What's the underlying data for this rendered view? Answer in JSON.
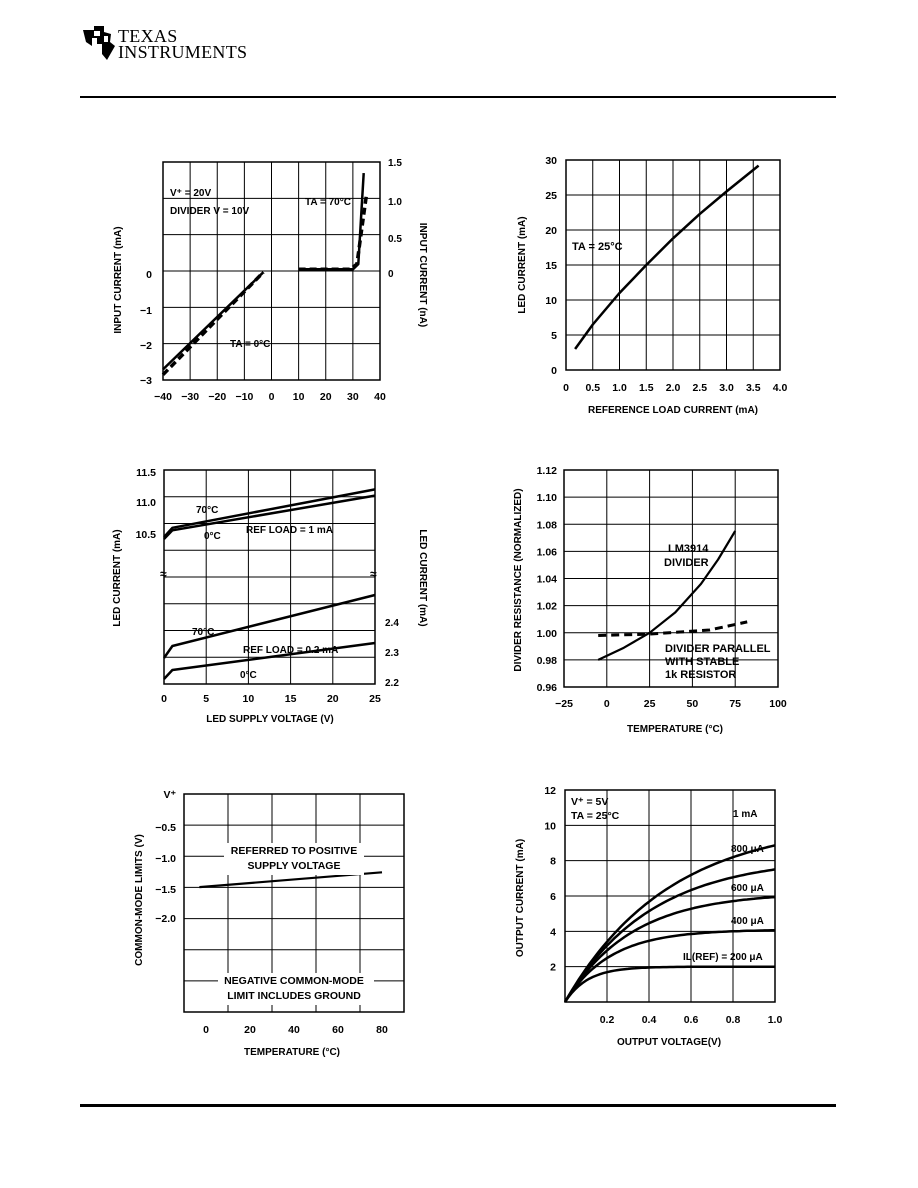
{
  "header": {
    "company_line1": "TEXAS",
    "company_line2": "INSTRUMENTS"
  },
  "chart_data": [
    {
      "id": "input-current",
      "type": "line",
      "xlabel": "",
      "ylabel_left": "INPUT CURRENT (mA)",
      "ylabel_right": "INPUT CURRENT (nA)",
      "xlim": [
        -40,
        40
      ],
      "x_ticks": [
        "−40",
        "−30",
        "−20",
        "−10",
        "0",
        "10",
        "20",
        "30",
        "40"
      ],
      "y_ticks_left": [
        "0",
        "−1",
        "−2",
        "−3"
      ],
      "y_ticks_right": [
        "1.5",
        "1.0",
        "0.5",
        "0"
      ],
      "annotations": [
        "V⁺ = 20V",
        "DIVIDER V = 10V",
        "TA = 70°C",
        "TA = 0°C"
      ],
      "series": [
        {
          "name": "TA = 0°C solid",
          "x": [
            -40,
            -3
          ],
          "y": [
            -2.7,
            0.05
          ]
        },
        {
          "name": "TA = 0°C dashed",
          "x": [
            -40,
            -3
          ],
          "y": [
            -2.85,
            0.05
          ]
        },
        {
          "name": "TA = 70°C (nA scale)",
          "x": [
            10,
            30,
            32,
            34
          ],
          "y": [
            0.05,
            0.05,
            0.1,
            1.3
          ]
        }
      ]
    },
    {
      "id": "led-vs-ref-load",
      "type": "line",
      "xlabel": "REFERENCE LOAD CURRENT (mA)",
      "ylabel": "LED CURRENT (mA)",
      "xlim": [
        0,
        4.0
      ],
      "ylim": [
        0,
        30
      ],
      "x_ticks": [
        "0",
        "0.5",
        "1.0",
        "1.5",
        "2.0",
        "2.5",
        "3.0",
        "3.5",
        "4.0"
      ],
      "y_ticks": [
        "0",
        "5",
        "10",
        "15",
        "20",
        "25",
        "30"
      ],
      "annotations": [
        "TA = 25°C"
      ],
      "series": [
        {
          "name": "TA = 25°C",
          "x": [
            0.17,
            0.5,
            1.0,
            1.5,
            2.0,
            2.5,
            3.0,
            3.6
          ],
          "y": [
            3.0,
            6.5,
            11.0,
            15.0,
            18.8,
            22.3,
            25.5,
            29.2
          ]
        }
      ]
    },
    {
      "id": "led-vs-supply",
      "type": "line",
      "xlabel": "LED SUPPLY VOLTAGE (V)",
      "ylabel_left": "LED CURRENT (mA)",
      "ylabel_right": "LED CURRENT (mA)",
      "xlim": [
        0,
        25
      ],
      "x_ticks": [
        "0",
        "5",
        "10",
        "15",
        "20",
        "25"
      ],
      "y_ticks_left": [
        "11.5",
        "11.0",
        "10.5"
      ],
      "y_ticks_right": [
        "2.4",
        "2.3",
        "2.2"
      ],
      "annotations": [
        "70°C",
        "0°C",
        "REF LOAD = 1 mA",
        "70°C",
        "REF LOAD = 0.2 mA",
        "0°C"
      ],
      "series": [
        {
          "name": "1 mA 70°C",
          "x": [
            0,
            1,
            25
          ],
          "y": [
            10.45,
            10.6,
            11.22
          ]
        },
        {
          "name": "1 mA 0°C",
          "x": [
            0,
            1,
            25
          ],
          "y": [
            10.42,
            10.56,
            11.12
          ]
        },
        {
          "name": "0.2 mA 70°C",
          "x": [
            0,
            1,
            25
          ],
          "y": [
            2.28,
            2.32,
            2.49
          ]
        },
        {
          "name": "0.2 mA 0°C",
          "x": [
            0,
            1,
            25
          ],
          "y": [
            2.21,
            2.24,
            2.33
          ]
        }
      ]
    },
    {
      "id": "divider-resistance",
      "type": "line",
      "xlabel": "TEMPERATURE (°C)",
      "ylabel": "DIVIDER RESISTANCE (NORMALIZED)",
      "xlim": [
        -25,
        100
      ],
      "ylim": [
        0.96,
        1.12
      ],
      "x_ticks": [
        "−25",
        "0",
        "25",
        "50",
        "75",
        "100"
      ],
      "y_ticks": [
        "0.96",
        "0.98",
        "1.00",
        "1.02",
        "1.04",
        "1.06",
        "1.08",
        "1.10",
        "1.12"
      ],
      "annotations": [
        "LM3914",
        "DIVIDER",
        "DIVIDER PARALLEL",
        "WITH STABLE",
        "1k RESISTOR"
      ],
      "series": [
        {
          "name": "LM3914 DIVIDER",
          "x": [
            -5,
            10,
            25,
            40,
            55,
            65,
            75
          ],
          "y": [
            0.98,
            0.989,
            1.0,
            1.015,
            1.036,
            1.054,
            1.075
          ]
        },
        {
          "name": "DIVIDER PARALLEL WITH STABLE 1k RESISTOR",
          "x": [
            -5,
            25,
            60,
            82
          ],
          "y": [
            0.998,
            0.999,
            1.002,
            1.008
          ]
        }
      ]
    },
    {
      "id": "common-mode-limits",
      "type": "line",
      "xlabel": "TEMPERATURE (°C)",
      "ylabel": "COMMON-MODE LIMITS (V)",
      "x_ticks": [
        "0",
        "20",
        "40",
        "60",
        "80"
      ],
      "y_ticks": [
        "V⁺",
        "−0.5",
        "−1.0",
        "−1.5",
        "−2.0"
      ],
      "annotations": [
        "REFERRED TO POSITIVE",
        "SUPPLY VOLTAGE",
        "NEGATIVE COMMON-MODE",
        "LIMIT INCLUDES GROUND"
      ],
      "series": [
        {
          "name": "Referred to positive supply",
          "x": [
            -3,
            80
          ],
          "y": [
            -1.47,
            -1.23
          ]
        }
      ]
    },
    {
      "id": "output-current",
      "type": "line",
      "xlabel": "OUTPUT VOLTAGE(V)",
      "ylabel": "OUTPUT CURRENT (mA)",
      "xlim": [
        0,
        1.0
      ],
      "ylim": [
        0,
        12
      ],
      "x_ticks": [
        "0.2",
        "0.4",
        "0.6",
        "0.8",
        "1.0"
      ],
      "y_ticks": [
        "2",
        "4",
        "6",
        "8",
        "10",
        "12"
      ],
      "annotations": [
        "V⁺ = 5V",
        "TA = 25°C",
        "1 mA",
        "800 μA",
        "600 μA",
        "400 μA",
        "IL(REF) = 200 μA"
      ],
      "series": [
        {
          "name": "1 mA",
          "sat": 10.2,
          "knee": 0.6
        },
        {
          "name": "800 μA",
          "sat": 8.2,
          "knee": 0.48
        },
        {
          "name": "600 μA",
          "sat": 6.2,
          "knee": 0.36
        },
        {
          "name": "400 μA",
          "sat": 4.1,
          "knee": 0.24
        },
        {
          "name": "IL(REF) = 200 μA",
          "sat": 2.0,
          "knee": 0.12
        }
      ]
    }
  ]
}
